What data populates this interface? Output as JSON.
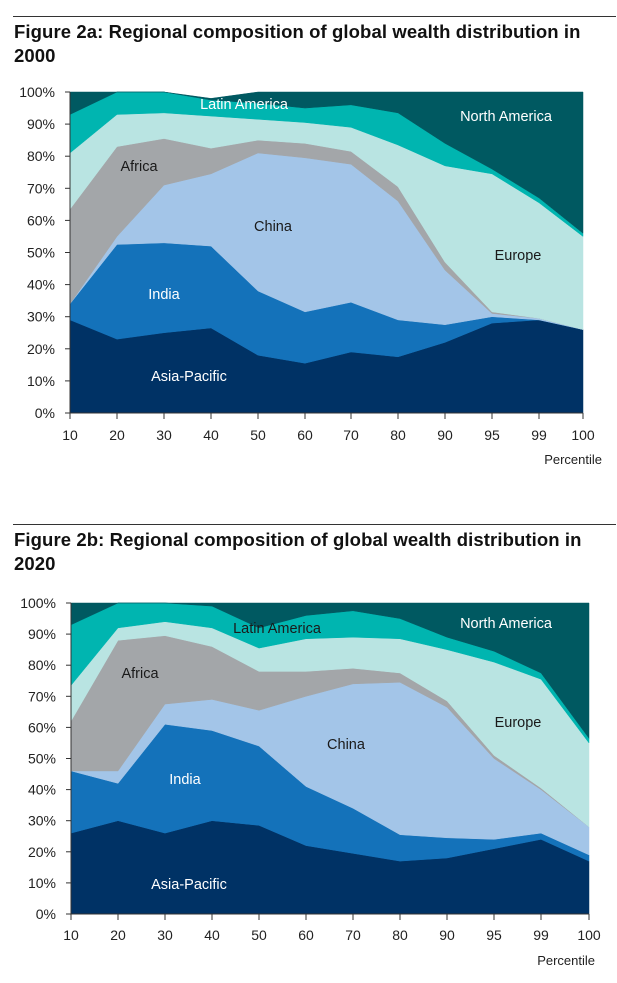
{
  "colors": {
    "North America": "#005961",
    "Latin America": "#00B5B0",
    "Europe": "#B9E4E2",
    "Africa": "#A3A6A9",
    "China": "#A3C5E8",
    "India": "#1472BA",
    "Asia-Pacific": "#003265"
  },
  "chart_data": [
    {
      "type": "area",
      "stacked": true,
      "title": "Figure 2a: Regional composition of global wealth distribution in 2000",
      "xlabel": "Percentile",
      "ylabel": "",
      "x": [
        "10",
        "20",
        "30",
        "40",
        "50",
        "60",
        "70",
        "80",
        "90",
        "95",
        "99",
        "100"
      ],
      "ylim": [
        0,
        100
      ],
      "yticks": [
        "0%",
        "10%",
        "20%",
        "30%",
        "40%",
        "50%",
        "60%",
        "70%",
        "80%",
        "90%",
        "100%"
      ],
      "series": [
        {
          "name": "Asia-Pacific",
          "label": "Asia-Pacific",
          "values": [
            29,
            23,
            25,
            26.5,
            18,
            15.5,
            19,
            17.5,
            22,
            28,
            29,
            26
          ]
        },
        {
          "name": "India",
          "label": "India",
          "values": [
            5,
            29.5,
            28,
            25.5,
            20,
            16,
            15.5,
            11.5,
            5.5,
            2,
            0,
            0
          ]
        },
        {
          "name": "China",
          "label": "China",
          "values": [
            0,
            2.5,
            18,
            22.5,
            43,
            48,
            43,
            37,
            17,
            1,
            0.5,
            0
          ]
        },
        {
          "name": "Africa",
          "label": "Africa",
          "values": [
            29.5,
            28,
            14.5,
            8,
            4,
            4.5,
            4,
            4.5,
            2.5,
            0.5,
            0,
            0
          ]
        },
        {
          "name": "Europe",
          "label": "Europe",
          "values": [
            17.5,
            10,
            8,
            10,
            6.5,
            6.5,
            7.5,
            13,
            30,
            43,
            36,
            29
          ]
        },
        {
          "name": "Latin America",
          "label": "Latin America",
          "values": [
            12,
            7,
            6.5,
            5,
            5,
            4.5,
            7,
            10,
            7,
            1.5,
            1.5,
            1
          ]
        },
        {
          "name": "North America",
          "label": "North America",
          "values": [
            7,
            0,
            0,
            0.5,
            3.5,
            5,
            4,
            6.5,
            16,
            24,
            33,
            44
          ]
        }
      ]
    },
    {
      "type": "area",
      "stacked": true,
      "title": "Figure 2b: Regional composition of global wealth distribution in 2020",
      "xlabel": "Percentile",
      "ylabel": "",
      "x": [
        "10",
        "20",
        "30",
        "40",
        "50",
        "60",
        "70",
        "80",
        "90",
        "95",
        "99",
        "100"
      ],
      "ylim": [
        0,
        100
      ],
      "yticks": [
        "0%",
        "10%",
        "20%",
        "30%",
        "40%",
        "50%",
        "60%",
        "70%",
        "80%",
        "90%",
        "100%"
      ],
      "series": [
        {
          "name": "Asia-Pacific",
          "label": "Asia-Pacific",
          "values": [
            26,
            30,
            26,
            30,
            28.5,
            22,
            19.5,
            17,
            18,
            21,
            24,
            17
          ]
        },
        {
          "name": "India",
          "label": "India",
          "values": [
            20,
            12,
            35,
            29,
            25.5,
            19,
            14.5,
            8.5,
            6.5,
            3,
            2,
            2
          ]
        },
        {
          "name": "China",
          "label": "China",
          "values": [
            0,
            4,
            6.5,
            10,
            11.5,
            29,
            40,
            49,
            42,
            26,
            14,
            9
          ]
        },
        {
          "name": "Africa",
          "label": "Africa",
          "values": [
            16,
            42,
            22,
            17,
            12.5,
            8,
            5,
            3,
            2,
            1,
            0.5,
            0
          ]
        },
        {
          "name": "Europe",
          "label": "Europe",
          "values": [
            11.5,
            4,
            4.5,
            6,
            7.5,
            10.5,
            10,
            11,
            16.5,
            30,
            35,
            27
          ]
        },
        {
          "name": "Latin America",
          "label": "Latin America",
          "values": [
            19.5,
            8,
            6,
            7,
            6.5,
            7.5,
            8.5,
            6.5,
            4,
            3.5,
            2,
            1.5
          ]
        },
        {
          "name": "North America",
          "label": "North America",
          "values": [
            7,
            0,
            0,
            1,
            8,
            4,
            2.5,
            5,
            11,
            15.5,
            22.5,
            43.5
          ]
        }
      ]
    }
  ]
}
